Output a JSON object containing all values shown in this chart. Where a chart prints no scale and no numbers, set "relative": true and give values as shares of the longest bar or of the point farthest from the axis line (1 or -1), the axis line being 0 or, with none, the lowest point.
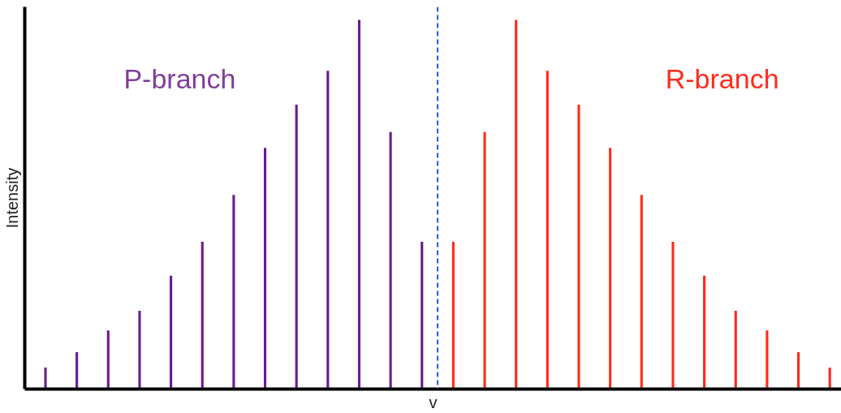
{
  "chart_data": {
    "type": "bar",
    "relative": true,
    "xlabel": "v",
    "ylabel": "Intensity",
    "categories": [
      null,
      null,
      null,
      null,
      null,
      null,
      null,
      null,
      null,
      null,
      null,
      null,
      null,
      null,
      null,
      null,
      null,
      null,
      null,
      null,
      null,
      null,
      null,
      null,
      null,
      null
    ],
    "values": [
      0.058,
      0.1,
      0.159,
      0.212,
      0.307,
      0.399,
      0.526,
      0.653,
      0.77,
      0.862,
      1,
      0.696,
      0.399,
      0.399,
      0.696,
      1,
      0.862,
      0.77,
      0.653,
      0.526,
      0.399,
      0.307,
      0.212,
      0.159,
      0.1,
      0.058
    ],
    "colors": [
      "#6a1b8a",
      "#6a1b8a",
      "#6a1b8a",
      "#6a1b8a",
      "#6a1b8a",
      "#6a1b8a",
      "#6a1b8a",
      "#6a1b8a",
      "#6a1b8a",
      "#6a1b8a",
      "#6a1b8a",
      "#6a1b8a",
      "#6a1b8a",
      "#ff2a1a",
      "#ff2a1a",
      "#ff2a1a",
      "#ff2a1a",
      "#ff2a1a",
      "#ff2a1a",
      "#ff2a1a",
      "#ff2a1a",
      "#ff2a1a",
      "#ff2a1a",
      "#ff2a1a",
      "#ff2a1a",
      "#ff2a1a"
    ],
    "annotations": [
      "P-branch",
      "R-branch"
    ],
    "ref_lines": [
      {
        "axis": "x",
        "color": "#2255ee",
        "line_style": "dashed"
      }
    ]
  }
}
